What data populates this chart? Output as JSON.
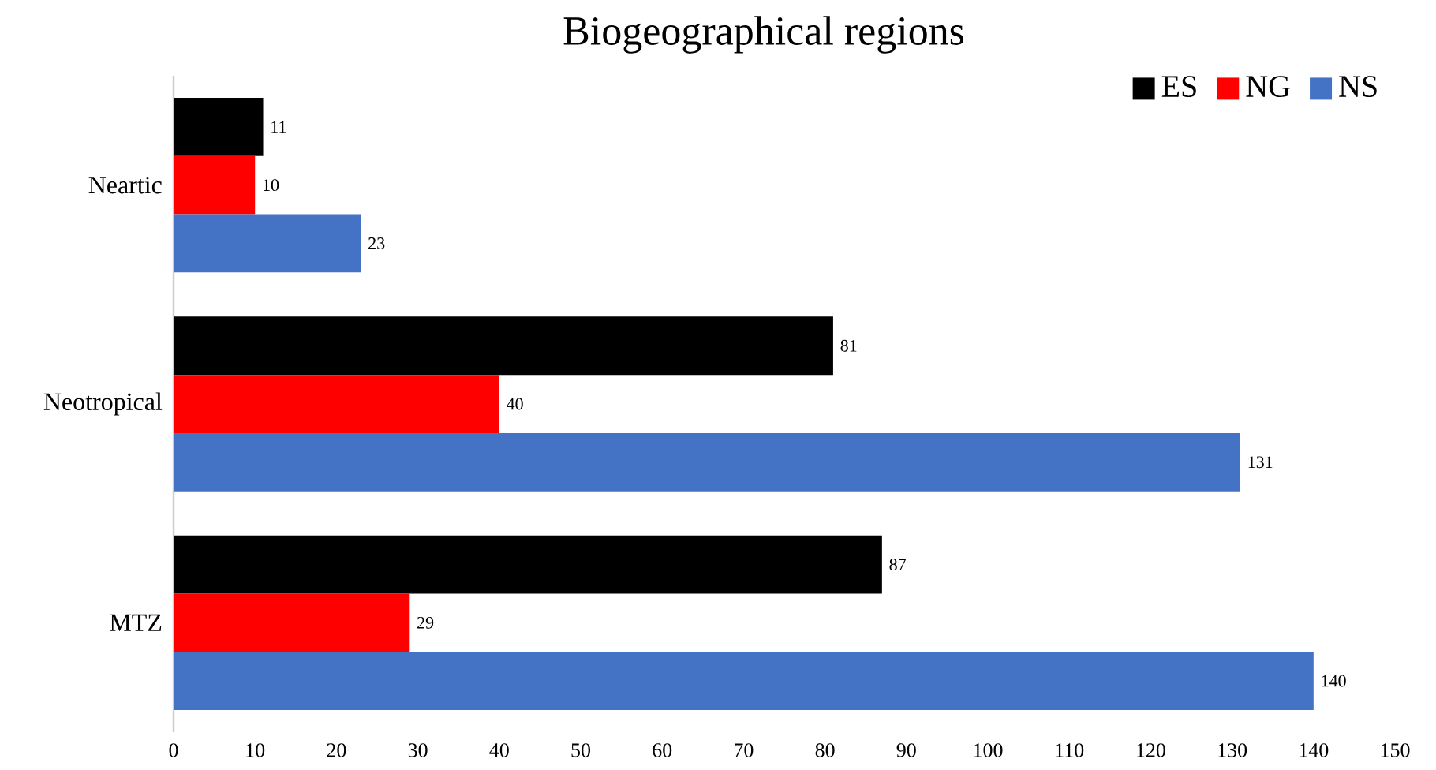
{
  "chart_data": {
    "type": "bar",
    "orientation": "horizontal",
    "title": "Biogeographical regions",
    "categories": [
      "Neartic",
      "Neotropical",
      "MTZ"
    ],
    "series": [
      {
        "name": "ES",
        "color": "#000000",
        "values": [
          11,
          81,
          87
        ]
      },
      {
        "name": "NG",
        "color": "#ff0000",
        "values": [
          10,
          40,
          29
        ]
      },
      {
        "name": "NS",
        "color": "#4472c4",
        "values": [
          23,
          131,
          140
        ]
      }
    ],
    "xlim": [
      0,
      150
    ],
    "xticks": [
      0,
      10,
      20,
      30,
      40,
      50,
      60,
      70,
      80,
      90,
      100,
      110,
      120,
      130,
      140,
      150
    ],
    "data_labels": true,
    "legend": "top right",
    "grid": false
  }
}
